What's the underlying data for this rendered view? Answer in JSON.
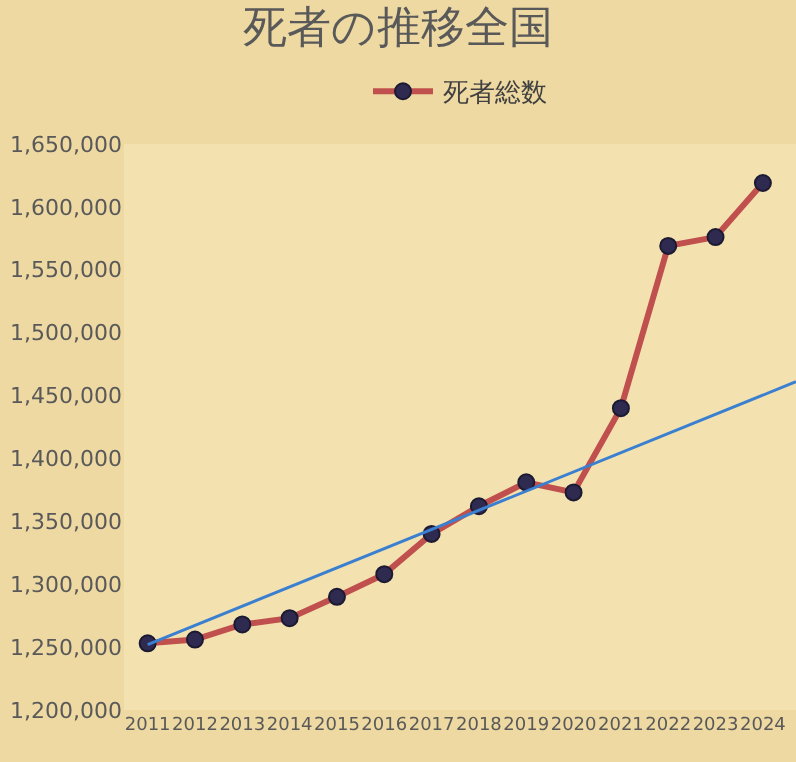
{
  "chart_data": {
    "type": "line",
    "title": "死者の推移全国",
    "x": [
      2011,
      2012,
      2013,
      2014,
      2015,
      2016,
      2017,
      2018,
      2019,
      2020,
      2021,
      2022,
      2023,
      2024
    ],
    "series": [
      {
        "name": "死者総数",
        "color": "#c0504d",
        "marker": "circle",
        "values": [
          1253000,
          1256000,
          1268000,
          1273000,
          1290000,
          1308000,
          1340000,
          1362000,
          1381000,
          1373000,
          1440000,
          1569000,
          1576000,
          1619000
        ]
      },
      {
        "type": "line",
        "color": "#3a7fd0",
        "marker": "none",
        "x": [
          2011,
          2024.7
        ],
        "values": [
          1252000,
          1461000
        ]
      }
    ],
    "xlim": [
      2010.5,
      2024.7
    ],
    "xticks": [
      2011,
      2012,
      2013,
      2014,
      2015,
      2016,
      2017,
      2018,
      2019,
      2020,
      2021,
      2022,
      2023,
      2024
    ],
    "ylim": [
      1200000,
      1650000
    ],
    "yticks": [
      {
        "value": 1200000,
        "label": "1,200,000"
      },
      {
        "value": 1250000,
        "label": "1,250,000"
      },
      {
        "value": 1300000,
        "label": "1,300,000"
      },
      {
        "value": 1350000,
        "label": "1,350,000"
      },
      {
        "value": 1400000,
        "label": "1,400,000"
      },
      {
        "value": 1450000,
        "label": "1,450,000"
      },
      {
        "value": 1500000,
        "label": "1,500,000"
      },
      {
        "value": 1550000,
        "label": "1,550,000"
      },
      {
        "value": 1600000,
        "label": "1,600,000"
      },
      {
        "value": 1650000,
        "label": "1,650,000"
      }
    ],
    "grid": false,
    "legend": "top"
  }
}
